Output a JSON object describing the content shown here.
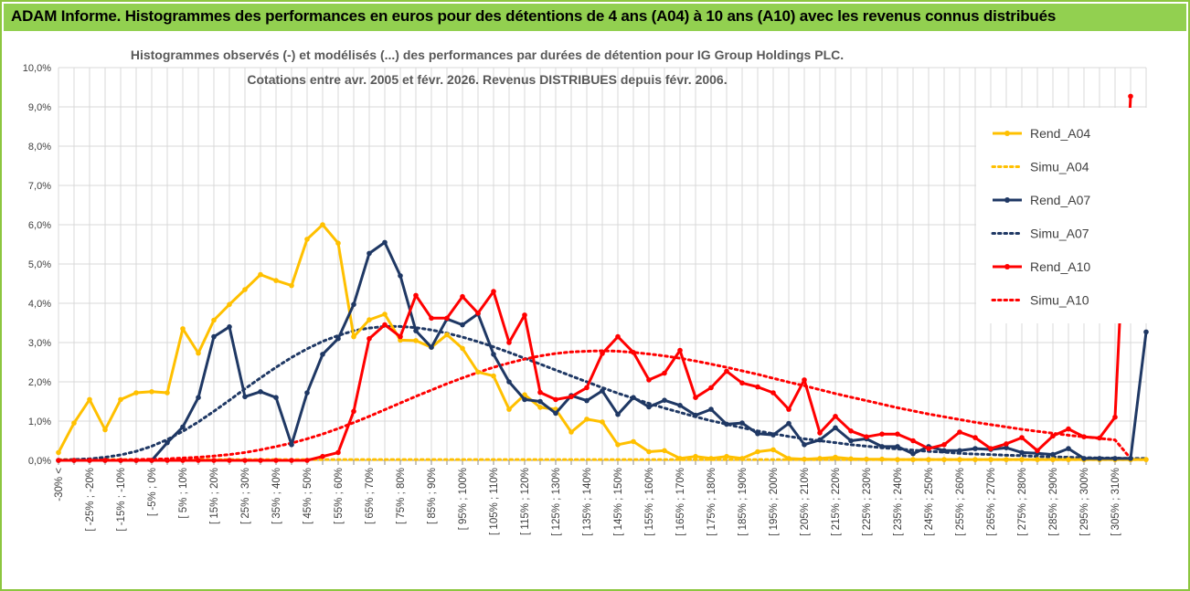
{
  "header": {
    "banner_title": "ADAM Informe. Histogrammes des performances en euros pour des détentions de 4 ans (A04) à 10 ans (A10) avec les revenus connus distribués"
  },
  "colors": {
    "banner_bg": "#92d050",
    "A04": "#ffc000",
    "A07": "#1f3864",
    "A10": "#ff0000",
    "grid": "#d9d9d9"
  },
  "chart_data": {
    "type": "line",
    "title_line1": "Histogrammes observés (-) et modélisés (...) des performances par durées de détention pour IG Group Holdings PLC.",
    "title_line2": "Cotations entre avr. 2005 et févr. 2026. Revenus DISTRIBUES depuis févr. 2006.",
    "ylim": [
      0,
      10
    ],
    "y_ticks": [
      "0,0%",
      "1,0%",
      "2,0%",
      "3,0%",
      "4,0%",
      "5,0%",
      "6,0%",
      "7,0%",
      "8,0%",
      "9,0%",
      "10,0%"
    ],
    "x_labels": [
      "-30% <",
      "[ -25% ; -20%",
      "[ -15% ; -10%",
      "[ -5% ; 0%",
      "[ 5% ; 10%",
      "[ 15% ; 20%",
      "[ 25% ; 30%",
      "[ 35% ; 40%",
      "[ 45% ; 50%",
      "[ 55% ; 60%",
      "[ 65% ; 70%",
      "[ 75% ; 80%",
      "[ 85% ; 90%",
      "[ 95% ; 100%",
      "[ 105% ; 110%",
      "[ 115% ; 120%",
      "[ 125% ; 130%",
      "[ 135% ; 140%",
      "[ 145% ; 150%",
      "[ 155% ; 160%",
      "[ 165% ; 170%",
      "[ 175% ; 180%",
      "[ 185% ; 190%",
      "[ 195% ; 200%",
      "[ 205% ; 210%",
      "[ 215% ; 220%",
      "[ 225% ; 230%",
      "[ 235% ; 240%",
      "[ 245% ; 250%",
      "[ 255% ; 260%",
      "[ 265% ; 270%",
      "[ 275% ; 280%",
      "[ 285% ; 290%",
      "[ 295% ; 300%",
      "[ 305% ; 310%"
    ],
    "series": [
      {
        "name": "Rend_A04",
        "style": "solid",
        "color": "#ffc000",
        "values": [
          0.2,
          0.95,
          1.55,
          0.78,
          1.55,
          1.72,
          1.75,
          1.72,
          3.35,
          2.73,
          3.57,
          3.97,
          4.35,
          4.73,
          4.58,
          4.45,
          5.63,
          6.0,
          5.53,
          3.15,
          3.58,
          3.72,
          3.06,
          3.05,
          2.88,
          3.2,
          2.85,
          2.25,
          2.15,
          1.3,
          1.67,
          1.35,
          1.3,
          0.72,
          1.05,
          0.98,
          0.4,
          0.48,
          0.22,
          0.25,
          0.05,
          0.1,
          0.05,
          0.1,
          0.05,
          0.22,
          0.27,
          0.05,
          0.03,
          0.05,
          0.08,
          0.04,
          0.03,
          0.03,
          0.02,
          0.02,
          0.02,
          0.02,
          0.02,
          0.02,
          0.02,
          0.02,
          0.02,
          0.02,
          0.02,
          0.02,
          0.02,
          0.02,
          0.02,
          0.02,
          0.02
        ]
      },
      {
        "name": "Simu_A04",
        "style": "dotted",
        "color": "#ffc000",
        "values": [
          0.02,
          0.02,
          0.02,
          0.02,
          0.02,
          0.02,
          0.02,
          0.02,
          0.02,
          0.02,
          0.02,
          0.02,
          0.02,
          0.02,
          0.02,
          0.02,
          0.02,
          0.02,
          0.02,
          0.02,
          0.02,
          0.02,
          0.02,
          0.02,
          0.02,
          0.02,
          0.02,
          0.02,
          0.02,
          0.02,
          0.02,
          0.02,
          0.02,
          0.02,
          0.02,
          0.02,
          0.02,
          0.02,
          0.02,
          0.02,
          0.02,
          0.02,
          0.02,
          0.02,
          0.02,
          0.02,
          0.02,
          0.02,
          0.02,
          0.02,
          0.02,
          0.02,
          0.02,
          0.02,
          0.02,
          0.02,
          0.02,
          0.02,
          0.02,
          0.02,
          0.02,
          0.02,
          0.02,
          0.02,
          0.02,
          0.02,
          0.02,
          0.02,
          0.02,
          0.02,
          0.02
        ]
      },
      {
        "name": "Rend_A07",
        "style": "solid",
        "color": "#1f3864",
        "values": [
          0,
          0,
          0,
          0,
          0,
          0,
          0,
          0.45,
          0.85,
          1.6,
          3.15,
          3.4,
          1.62,
          1.75,
          1.6,
          0.4,
          1.72,
          2.7,
          3.1,
          3.97,
          5.27,
          5.55,
          4.7,
          3.3,
          2.88,
          3.6,
          3.45,
          3.73,
          2.7,
          2.0,
          1.55,
          1.5,
          1.2,
          1.65,
          1.52,
          1.77,
          1.17,
          1.6,
          1.36,
          1.53,
          1.4,
          1.15,
          1.3,
          0.92,
          0.95,
          0.68,
          0.65,
          0.94,
          0.4,
          0.52,
          0.83,
          0.5,
          0.55,
          0.35,
          0.35,
          0.17,
          0.35,
          0.25,
          0.25,
          0.3,
          0.28,
          0.32,
          0.2,
          0.18,
          0.15,
          0.3,
          0.05,
          0.05,
          0.05,
          0.05,
          3.27
        ]
      },
      {
        "name": "Simu_A07",
        "style": "dotted",
        "color": "#1f3864",
        "values": [
          0.01,
          0.02,
          0.04,
          0.08,
          0.14,
          0.23,
          0.36,
          0.53,
          0.74,
          0.98,
          1.25,
          1.53,
          1.82,
          2.1,
          2.37,
          2.62,
          2.84,
          3.03,
          3.18,
          3.3,
          3.37,
          3.41,
          3.41,
          3.38,
          3.32,
          3.24,
          3.14,
          3.02,
          2.89,
          2.75,
          2.6,
          2.45,
          2.3,
          2.15,
          2.0,
          1.85,
          1.71,
          1.58,
          1.45,
          1.33,
          1.22,
          1.11,
          1.01,
          0.92,
          0.83,
          0.75,
          0.68,
          0.61,
          0.55,
          0.5,
          0.45,
          0.4,
          0.36,
          0.32,
          0.29,
          0.26,
          0.23,
          0.21,
          0.18,
          0.16,
          0.15,
          0.13,
          0.12,
          0.1,
          0.09,
          0.08,
          0.07,
          0.06,
          0.06,
          0.05,
          0.05
        ]
      },
      {
        "name": "Rend_A10",
        "style": "solid",
        "color": "#ff0000",
        "values": [
          0,
          0,
          0,
          0,
          0,
          0,
          0,
          0,
          0,
          0,
          0,
          0,
          0,
          0,
          0,
          0,
          0,
          0.1,
          0.2,
          1.25,
          3.1,
          3.45,
          3.15,
          4.2,
          3.62,
          3.62,
          4.17,
          3.75,
          4.3,
          3.0,
          3.7,
          1.73,
          1.55,
          1.62,
          1.85,
          2.72,
          3.15,
          2.75,
          2.05,
          2.22,
          2.8,
          1.6,
          1.85,
          2.27,
          1.97,
          1.87,
          1.72,
          1.3,
          2.05,
          0.7,
          1.12,
          0.75,
          0.6,
          0.67,
          0.67,
          0.5,
          0.3,
          0.4,
          0.72,
          0.58,
          0.3,
          0.42,
          0.58,
          0.25,
          0.62,
          0.8,
          0.6,
          0.57,
          1.1,
          9.27
        ]
      },
      {
        "name": "Simu_A10",
        "style": "dotted",
        "color": "#ff0000",
        "values": [
          0.0,
          0.0,
          0.0,
          0.01,
          0.01,
          0.02,
          0.03,
          0.04,
          0.06,
          0.08,
          0.11,
          0.15,
          0.2,
          0.27,
          0.35,
          0.44,
          0.55,
          0.67,
          0.81,
          0.96,
          1.12,
          1.29,
          1.46,
          1.63,
          1.79,
          1.95,
          2.1,
          2.24,
          2.37,
          2.48,
          2.58,
          2.66,
          2.72,
          2.76,
          2.78,
          2.79,
          2.78,
          2.75,
          2.71,
          2.66,
          2.6,
          2.53,
          2.45,
          2.37,
          2.28,
          2.19,
          2.09,
          1.99,
          1.9,
          1.8,
          1.7,
          1.61,
          1.52,
          1.43,
          1.34,
          1.26,
          1.18,
          1.11,
          1.04,
          0.97,
          0.91,
          0.85,
          0.79,
          0.74,
          0.69,
          0.64,
          0.6,
          0.56,
          0.52,
          0.05
        ]
      }
    ],
    "legend": {
      "position": "right",
      "entries": [
        "Rend_A04",
        "Simu_A04",
        "Rend_A07",
        "Simu_A07",
        "Rend_A10",
        "Simu_A10"
      ]
    }
  }
}
